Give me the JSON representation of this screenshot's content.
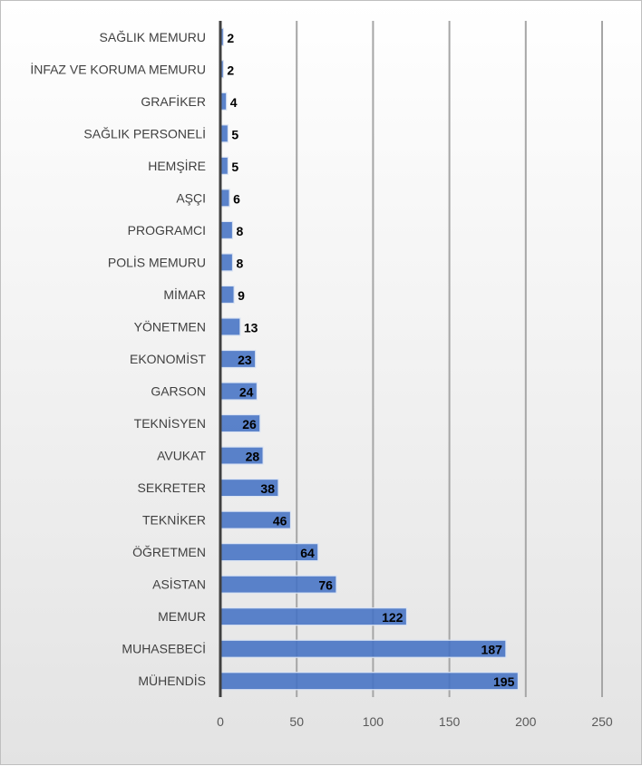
{
  "chart_data": {
    "type": "bar",
    "orientation": "horizontal",
    "categories": [
      "SAĞLIK MEMURU",
      "İNFAZ VE KORUMA MEMURU",
      "GRAFİKER",
      "SAĞLIK PERSONELİ",
      "HEMŞİRE",
      "AŞÇI",
      "PROGRAMCI",
      "POLİS MEMURU",
      "MİMAR",
      "YÖNETMEN",
      "EKONOMİST",
      "GARSON",
      "TEKNİSYEN",
      "AVUKAT",
      "SEKRETER",
      "TEKNİKER",
      "ÖĞRETMEN",
      "ASİSTAN",
      "MEMUR",
      "MUHASEBECİ",
      "MÜHENDİS"
    ],
    "values": [
      2,
      2,
      4,
      5,
      5,
      6,
      8,
      8,
      9,
      13,
      23,
      24,
      26,
      28,
      38,
      46,
      64,
      76,
      122,
      187,
      195
    ],
    "xlim": [
      0,
      250
    ],
    "xticks": [
      0,
      50,
      100,
      150,
      200,
      250
    ],
    "grid": true,
    "data_labels": true,
    "bar_color": "#4472c4",
    "title": "",
    "xlabel": "",
    "ylabel": ""
  }
}
